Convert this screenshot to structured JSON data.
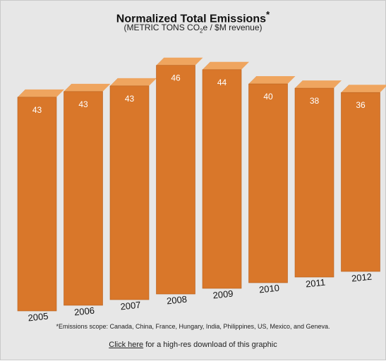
{
  "chart_data": {
    "type": "bar",
    "title": "Normalized Total Emissions",
    "title_mark": "*",
    "subtitle_prefix": "(METRIC TONS CO",
    "subtitle_sub": "2",
    "subtitle_suffix": "e / $M revenue)",
    "categories": [
      "2005",
      "2006",
      "2007",
      "2008",
      "2009",
      "2010",
      "2011",
      "2012"
    ],
    "values": [
      43,
      43,
      43,
      46,
      44,
      40,
      38,
      36
    ],
    "xlabel": "",
    "ylabel": "",
    "grid": false,
    "legend": "none",
    "bar_color": "#d9772a",
    "bar_side_color": "#9c4e12",
    "bar_top_color": "#efa55f"
  },
  "footnote": "*Emissions scope: Canada, China, France, Hungary, India, Philippines, US, Mexico, and Geneva.",
  "download": {
    "link_label": "Click here",
    "rest_text": " for a high-res download of this graphic"
  }
}
